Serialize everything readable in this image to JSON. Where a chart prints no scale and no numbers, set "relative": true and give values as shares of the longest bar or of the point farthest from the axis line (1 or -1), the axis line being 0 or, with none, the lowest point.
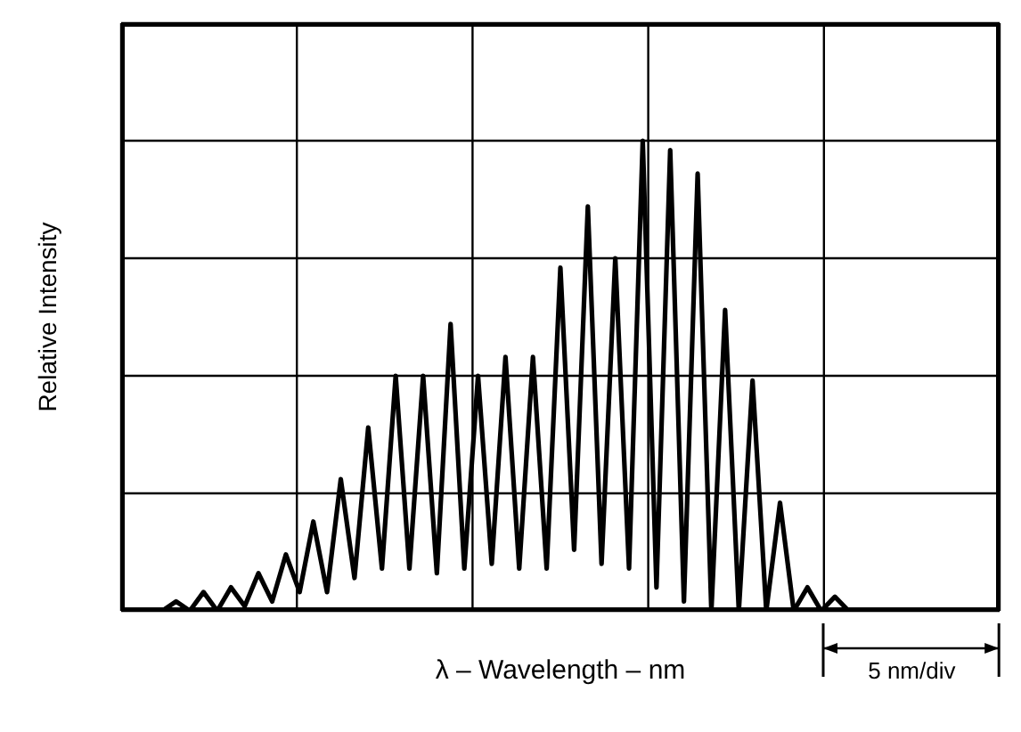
{
  "chart_data": {
    "type": "line",
    "xlabel": "λ – Wavelength – nm",
    "ylabel": "Relative Intensity",
    "annotations": [
      "5 nm/div"
    ],
    "relative": true,
    "grid": true,
    "tick_labels": false,
    "marker": "none",
    "categories": [
      null,
      null,
      null,
      null,
      null,
      null,
      null,
      null,
      null,
      null,
      null,
      null,
      null,
      null,
      null,
      null,
      null,
      null,
      null,
      null,
      null,
      null,
      null,
      null,
      null,
      null,
      null,
      null,
      null,
      null,
      null,
      null,
      null,
      null,
      null,
      null,
      null,
      null,
      null,
      null,
      null,
      null,
      null,
      null,
      null,
      null,
      null,
      null,
      null,
      null,
      null,
      null,
      null,
      null,
      null,
      null,
      null,
      null,
      null,
      null,
      null,
      null,
      null,
      null,
      null
    ],
    "series": [
      {
        "color": "#000000",
        "values": [
          0,
          0,
          0,
          0,
          0.02,
          0,
          0.04,
          0,
          0.05,
          0.01,
          0.08,
          0.02,
          0.12,
          0.04,
          0.19,
          0.04,
          0.28,
          0.07,
          0.39,
          0.09,
          0.5,
          0.09,
          0.5,
          0.08,
          0.61,
          0.09,
          0.5,
          0.1,
          0.54,
          0.09,
          0.54,
          0.09,
          0.73,
          0.13,
          0.86,
          0.1,
          0.75,
          0.09,
          1,
          0.05,
          0.98,
          0.02,
          0.93,
          0,
          0.64,
          0,
          0.49,
          0,
          0.23,
          0,
          0.05,
          0,
          0.03,
          0,
          0,
          0,
          0,
          0,
          0,
          0,
          0,
          0,
          0,
          0,
          0
        ]
      }
    ]
  }
}
